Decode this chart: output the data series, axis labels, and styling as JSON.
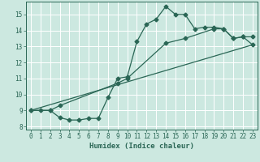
{
  "xlabel": "Humidex (Indice chaleur)",
  "xlim": [
    -0.5,
    23.5
  ],
  "ylim": [
    7.8,
    15.8
  ],
  "yticks": [
    8,
    9,
    10,
    11,
    12,
    13,
    14,
    15
  ],
  "xticks": [
    0,
    1,
    2,
    3,
    4,
    5,
    6,
    7,
    8,
    9,
    10,
    11,
    12,
    13,
    14,
    15,
    16,
    17,
    18,
    19,
    20,
    21,
    22,
    23
  ],
  "bg_color": "#cce8e0",
  "line_color": "#2a6655",
  "grid_color": "#ffffff",
  "line1_x": [
    0,
    1,
    2,
    3,
    4,
    5,
    6,
    7,
    8,
    9,
    10,
    11,
    12,
    13,
    14,
    15,
    16,
    17,
    18,
    19,
    20,
    21,
    22,
    23
  ],
  "line1_y": [
    9.0,
    9.0,
    9.0,
    8.55,
    8.4,
    8.4,
    8.5,
    8.5,
    9.8,
    11.0,
    11.1,
    13.3,
    14.4,
    14.7,
    15.5,
    15.0,
    15.0,
    14.1,
    14.2,
    14.2,
    14.1,
    13.5,
    13.6,
    13.6
  ],
  "line2_x": [
    0,
    2,
    3,
    9,
    10,
    14,
    16,
    19,
    20,
    21,
    22,
    23
  ],
  "line2_y": [
    9.0,
    9.0,
    9.3,
    10.7,
    11.0,
    13.2,
    13.5,
    14.1,
    14.1,
    13.5,
    13.6,
    13.1
  ],
  "line3_x": [
    0,
    23
  ],
  "line3_y": [
    9.0,
    13.1
  ],
  "markersize": 2.5,
  "linewidth": 0.9,
  "xlabel_fontsize": 6.5,
  "tick_fontsize": 5.5
}
